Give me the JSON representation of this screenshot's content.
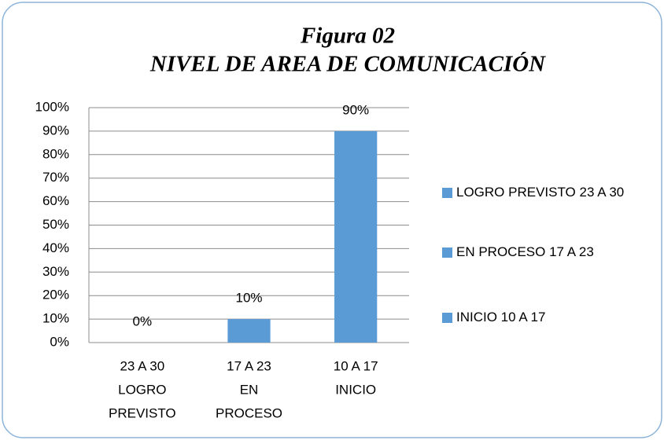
{
  "chart_data": {
    "type": "bar",
    "title": [
      "Figura  02",
      "NIVEL DE AREA DE COMUNICACIÓN"
    ],
    "categories": [
      [
        "23 A 30",
        "LOGRO",
        "PREVISTO"
      ],
      [
        "17 A 23",
        "EN",
        "PROCESO"
      ],
      [
        "10 A 17",
        "INICIO"
      ]
    ],
    "values": [
      0,
      10,
      90
    ],
    "value_labels": [
      "0%",
      "10%",
      "90%"
    ],
    "legend": [
      "LOGRO PREVISTO 23 A 30",
      "EN PROCESO 17 A 23",
      "INICIO 10 A 17"
    ],
    "legend_position": "right",
    "color": "#5b9bd5",
    "ylim": [
      0,
      100
    ],
    "yticks": [
      {
        "value": 0,
        "label": "0%"
      },
      {
        "value": 10,
        "label": "10%"
      },
      {
        "value": 20,
        "label": "20%"
      },
      {
        "value": 30,
        "label": "30%"
      },
      {
        "value": 40,
        "label": "40%"
      },
      {
        "value": 50,
        "label": "50%"
      },
      {
        "value": 60,
        "label": "60%"
      },
      {
        "value": 70,
        "label": "70%"
      },
      {
        "value": 80,
        "label": "80%"
      },
      {
        "value": 90,
        "label": "90%"
      },
      {
        "value": 100,
        "label": "100%"
      }
    ],
    "grid": true
  }
}
